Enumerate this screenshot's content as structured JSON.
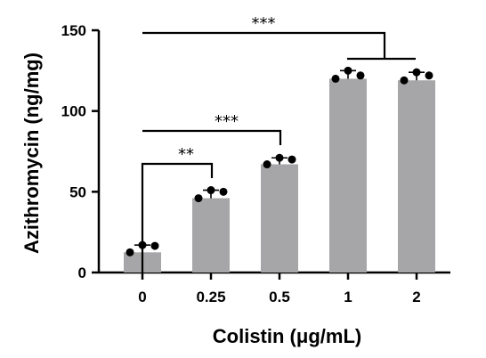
{
  "chart_data": {
    "type": "bar",
    "title": "",
    "xlabel": "Colistin (μg/mL)",
    "ylabel": "Azithromycin (ng/mg)",
    "categories": [
      "0",
      "0.25",
      "0.5",
      "1",
      "2"
    ],
    "values": [
      12.5,
      46,
      67,
      120,
      119
    ],
    "points": [
      [
        12.5,
        17,
        16.5
      ],
      [
        46,
        51,
        50
      ],
      [
        67,
        71,
        70
      ],
      [
        120,
        125,
        122
      ],
      [
        119,
        124,
        122
      ]
    ],
    "error_upper": [
      17,
      51,
      71,
      125,
      124
    ],
    "ylim": [
      0,
      150
    ],
    "yticks": [
      "0",
      "50",
      "100",
      "150"
    ],
    "bar_color": "#a6a6a8",
    "grid": false,
    "significance": [
      {
        "from": "0",
        "to": "0.25",
        "label": "**"
      },
      {
        "from": "0",
        "to": "0.5",
        "label": "***"
      },
      {
        "from": "0",
        "to": "1 and 2",
        "label": "***"
      }
    ]
  }
}
